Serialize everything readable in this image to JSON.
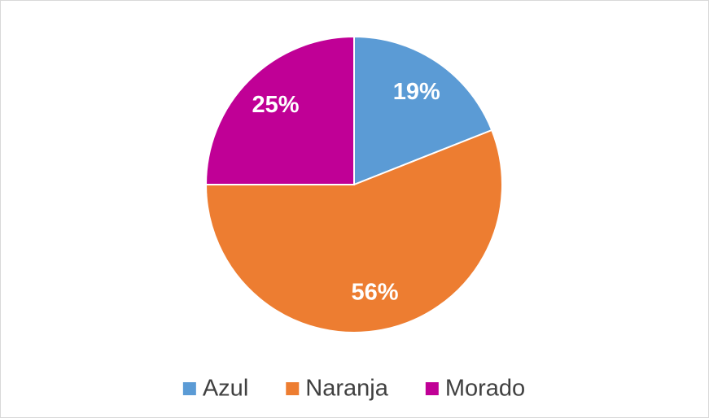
{
  "chart_data": {
    "type": "pie",
    "categories": [
      "Azul",
      "Naranja",
      "Morado"
    ],
    "values": [
      19,
      56,
      25
    ],
    "value_labels": [
      "19%",
      "56%",
      "25%"
    ],
    "colors": [
      "#5b9bd5",
      "#ed7d31",
      "#c00096"
    ],
    "legend": "bottom"
  }
}
